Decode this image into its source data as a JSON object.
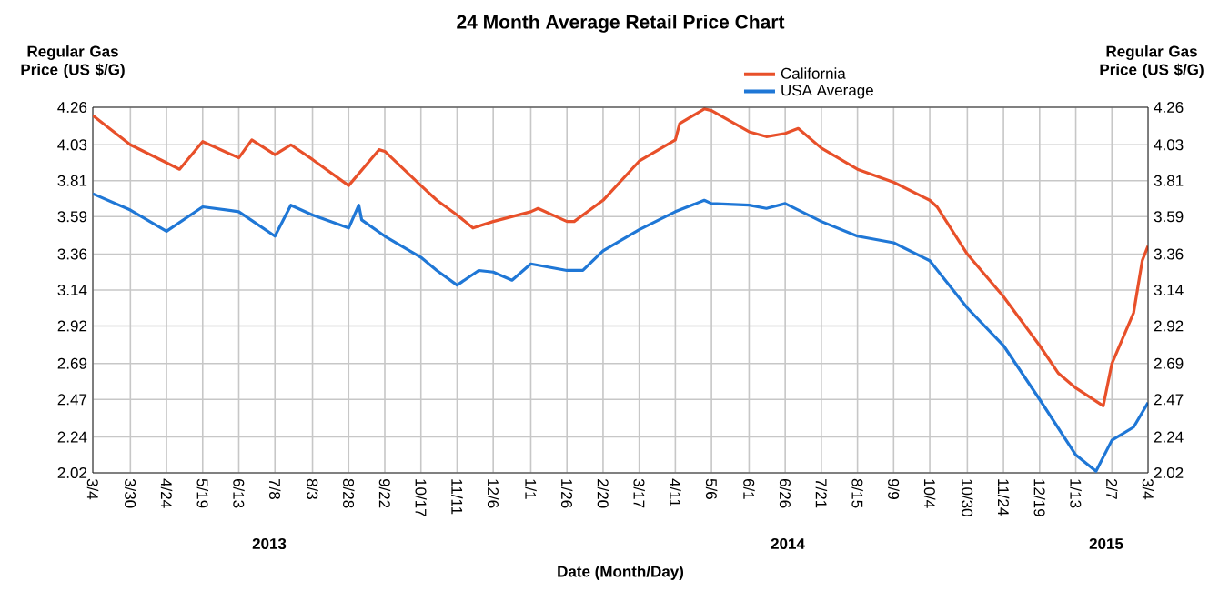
{
  "chart_data": {
    "type": "line",
    "title": "24 Month Average Retail Price Chart",
    "xlabel": "Date (Month/Day)",
    "ylabel": "Regular Gas Price (US $/G)",
    "y2label": "Regular Gas Price (US $/G)",
    "annotations": [
      "2013",
      "2014",
      "2015"
    ],
    "xlim": [
      "2013-03-04",
      "2015-03-04"
    ],
    "xticks": [
      {
        "value": "2013-03-04",
        "label": "3/4"
      },
      {
        "value": "2013-03-30",
        "label": "3/30"
      },
      {
        "value": "2013-04-24",
        "label": "4/24"
      },
      {
        "value": "2013-05-19",
        "label": "5/19"
      },
      {
        "value": "2013-06-13",
        "label": "6/13"
      },
      {
        "value": "2013-07-08",
        "label": "7/8"
      },
      {
        "value": "2013-08-03",
        "label": "8/3"
      },
      {
        "value": "2013-08-28",
        "label": "8/28"
      },
      {
        "value": "2013-09-22",
        "label": "9/22"
      },
      {
        "value": "2013-10-17",
        "label": "10/17"
      },
      {
        "value": "2013-11-11",
        "label": "11/11"
      },
      {
        "value": "2013-12-06",
        "label": "12/6"
      },
      {
        "value": "2014-01-01",
        "label": "1/1"
      },
      {
        "value": "2014-01-26",
        "label": "1/26"
      },
      {
        "value": "2014-02-20",
        "label": "2/20"
      },
      {
        "value": "2014-03-17",
        "label": "3/17"
      },
      {
        "value": "2014-04-11",
        "label": "4/11"
      },
      {
        "value": "2014-05-06",
        "label": "5/6"
      },
      {
        "value": "2014-06-01",
        "label": "6/1"
      },
      {
        "value": "2014-06-26",
        "label": "6/26"
      },
      {
        "value": "2014-07-21",
        "label": "7/21"
      },
      {
        "value": "2014-08-15",
        "label": "8/15"
      },
      {
        "value": "2014-09-09",
        "label": "9/9"
      },
      {
        "value": "2014-10-04",
        "label": "10/4"
      },
      {
        "value": "2014-10-30",
        "label": "10/30"
      },
      {
        "value": "2014-11-24",
        "label": "11/24"
      },
      {
        "value": "2014-12-19",
        "label": "12/19"
      },
      {
        "value": "2015-01-13",
        "label": "1/13"
      },
      {
        "value": "2015-02-07",
        "label": "2/7"
      },
      {
        "value": "2015-03-04",
        "label": "3/4"
      }
    ],
    "ylim": [
      2.02,
      4.26
    ],
    "yticks": [
      2.02,
      2.24,
      2.47,
      2.69,
      2.92,
      3.14,
      3.36,
      3.59,
      3.81,
      4.03,
      4.26
    ],
    "y2lim": [
      2.02,
      4.26
    ],
    "y2ticks": [
      2.02,
      2.24,
      2.47,
      2.69,
      2.92,
      3.14,
      3.36,
      3.59,
      3.81,
      4.03,
      4.26
    ],
    "grid": true,
    "legend": "top",
    "series": [
      {
        "name": "California",
        "color": "#e8502a",
        "x": [
          "2013-03-04",
          "2013-03-30",
          "2013-04-24",
          "2013-05-03",
          "2013-05-19",
          "2013-06-13",
          "2013-06-22",
          "2013-07-08",
          "2013-07-19",
          "2013-08-03",
          "2013-08-28",
          "2013-09-18",
          "2013-09-22",
          "2013-10-17",
          "2013-10-28",
          "2013-11-11",
          "2013-11-22",
          "2013-12-06",
          "2014-01-01",
          "2014-01-06",
          "2014-01-26",
          "2014-01-31",
          "2014-02-20",
          "2014-03-17",
          "2014-04-11",
          "2014-04-14",
          "2014-05-01",
          "2014-05-06",
          "2014-06-01",
          "2014-06-13",
          "2014-06-26",
          "2014-07-05",
          "2014-07-21",
          "2014-08-15",
          "2014-09-09",
          "2014-10-04",
          "2014-10-09",
          "2014-10-30",
          "2014-11-24",
          "2014-12-19",
          "2015-01-01",
          "2015-01-13",
          "2015-02-01",
          "2015-02-07",
          "2015-02-22",
          "2015-02-28",
          "2015-03-04"
        ],
        "values": [
          4.21,
          4.03,
          3.92,
          3.88,
          4.05,
          3.95,
          4.06,
          3.97,
          4.03,
          3.94,
          3.78,
          4.0,
          3.99,
          3.78,
          3.69,
          3.6,
          3.52,
          3.56,
          3.62,
          3.64,
          3.56,
          3.56,
          3.69,
          3.93,
          4.06,
          4.16,
          4.25,
          4.24,
          4.11,
          4.08,
          4.1,
          4.13,
          4.01,
          3.88,
          3.8,
          3.69,
          3.65,
          3.36,
          3.1,
          2.8,
          2.63,
          2.54,
          2.43,
          2.69,
          3.0,
          3.32,
          3.41
        ]
      },
      {
        "name": "USA Average",
        "color": "#1f77d6",
        "x": [
          "2013-03-04",
          "2013-03-30",
          "2013-04-24",
          "2013-05-19",
          "2013-06-13",
          "2013-07-08",
          "2013-07-19",
          "2013-08-03",
          "2013-08-28",
          "2013-09-04",
          "2013-09-06",
          "2013-09-22",
          "2013-10-17",
          "2013-10-28",
          "2013-11-11",
          "2013-11-26",
          "2013-12-06",
          "2013-12-19",
          "2014-01-01",
          "2014-01-26",
          "2014-02-06",
          "2014-02-20",
          "2014-03-17",
          "2014-04-11",
          "2014-05-01",
          "2014-05-06",
          "2014-06-01",
          "2014-06-13",
          "2014-06-26",
          "2014-07-21",
          "2014-08-15",
          "2014-09-09",
          "2014-10-04",
          "2014-10-30",
          "2014-11-24",
          "2014-12-19",
          "2015-01-13",
          "2015-01-27",
          "2015-02-07",
          "2015-02-22",
          "2015-03-04"
        ],
        "values": [
          3.73,
          3.63,
          3.5,
          3.65,
          3.62,
          3.47,
          3.66,
          3.6,
          3.52,
          3.66,
          3.57,
          3.47,
          3.34,
          3.26,
          3.17,
          3.26,
          3.25,
          3.2,
          3.3,
          3.26,
          3.26,
          3.38,
          3.51,
          3.62,
          3.69,
          3.67,
          3.66,
          3.64,
          3.67,
          3.56,
          3.47,
          3.43,
          3.32,
          3.03,
          2.8,
          2.47,
          2.13,
          2.03,
          2.22,
          2.3,
          2.45
        ]
      }
    ]
  }
}
